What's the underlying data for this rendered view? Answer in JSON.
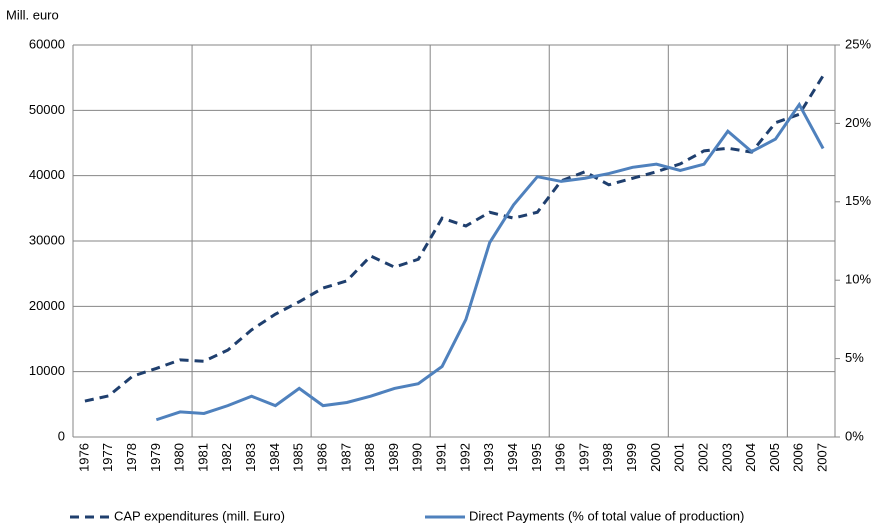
{
  "chart_data": {
    "type": "line",
    "y_label": "Mill. euro",
    "categories": [
      "1976",
      "1977",
      "1978",
      "1979",
      "1980",
      "1981",
      "1982",
      "1983",
      "1984",
      "1985",
      "1986",
      "1987",
      "1988",
      "1989",
      "1990",
      "1991",
      "1992",
      "1993",
      "1994",
      "1995",
      "1996",
      "1997",
      "1998",
      "1999",
      "2000",
      "2001",
      "2002",
      "2003",
      "2004",
      "2005",
      "2006",
      "2007"
    ],
    "series": [
      {
        "name": "CAP expenditures (mill. Euro)",
        "color": "#1f3f6e",
        "line_style": "dashed",
        "values": [
          5500,
          6300,
          9300,
          10500,
          11800,
          11600,
          13300,
          16400,
          18800,
          20700,
          22800,
          23900,
          27700,
          26000,
          27200,
          33500,
          32300,
          34400,
          33500,
          34400,
          39200,
          40600,
          38600,
          39600,
          40600,
          41800,
          43800,
          44200,
          43600,
          48100,
          49400,
          55300
        ]
      },
      {
        "name": "Direct Payments (% of total value of production)",
        "color": "#4f81bd",
        "line_style": "solid",
        "axis": "y2",
        "values": [
          null,
          null,
          null,
          1.1,
          1.6,
          1.5,
          2.0,
          2.6,
          2.0,
          3.1,
          2.0,
          2.2,
          2.6,
          3.1,
          3.4,
          4.5,
          7.5,
          12.4,
          14.8,
          16.6,
          16.3,
          16.5,
          16.8,
          17.2,
          17.4,
          17.0,
          17.4,
          19.5,
          18.2,
          19.0,
          21.2,
          18.4
        ]
      }
    ],
    "ylim": [
      0,
      60000
    ],
    "yticks": [
      0,
      10000,
      20000,
      30000,
      40000,
      50000,
      60000
    ],
    "y2lim": [
      0,
      25
    ],
    "y2ticks": [
      {
        "value": 0,
        "label": "0%"
      },
      {
        "value": 5,
        "label": "5%"
      },
      {
        "value": 10,
        "label": "10%"
      },
      {
        "value": 15,
        "label": "15%"
      },
      {
        "value": 20,
        "label": "20%"
      },
      {
        "value": 25,
        "label": "25%"
      }
    ],
    "grid": true
  }
}
